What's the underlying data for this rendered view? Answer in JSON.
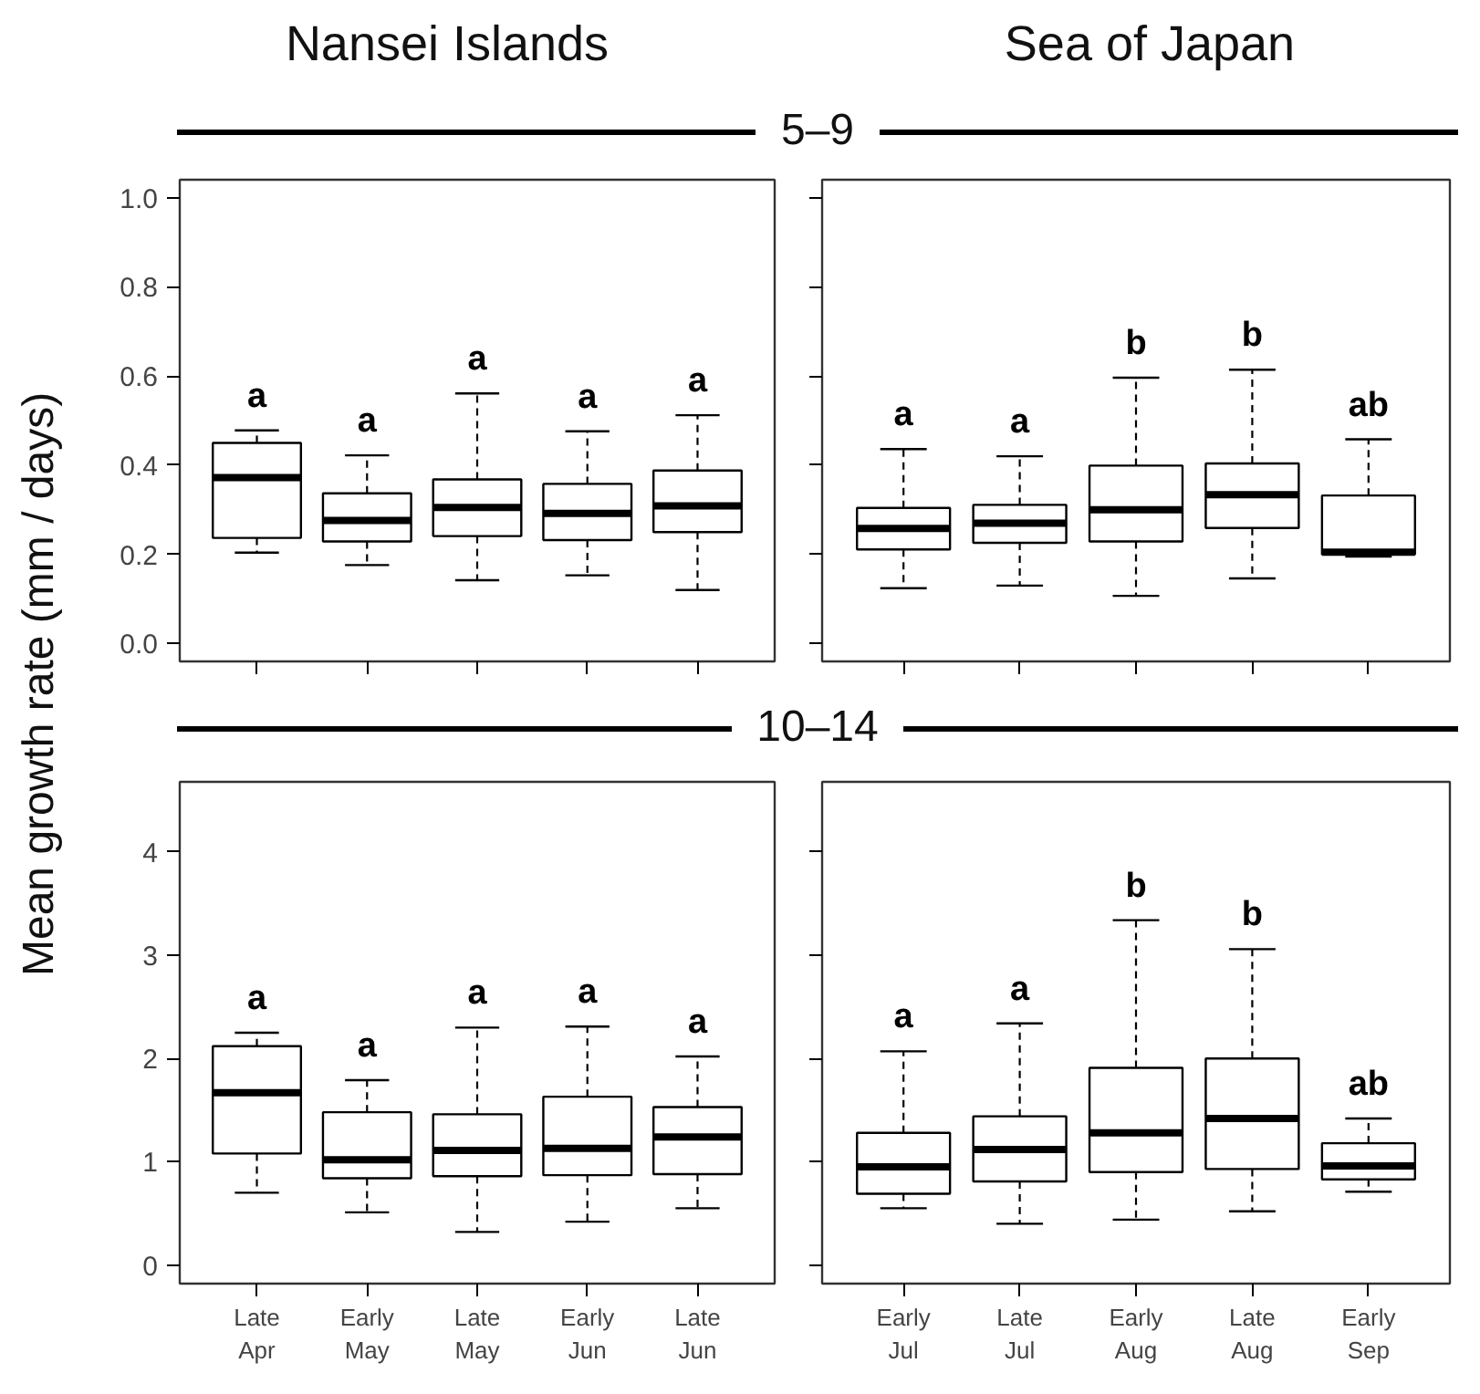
{
  "chart_data": [
    {
      "type": "box",
      "title": "Nansei Islands",
      "subtitle": "5–9",
      "ylabel": "Mean growth rate (mm / days)",
      "tick_labels": "y",
      "categories": [
        "Late Apr",
        "Early May",
        "Late May",
        "Early Jun",
        "Late Jun"
      ],
      "ylim": [
        -0.04,
        1.04
      ],
      "yticks": [
        {
          "value": 0,
          "label": "0.0"
        },
        0.2,
        0.4,
        0.6,
        0.8,
        {
          "value": 1,
          "label": "1.0"
        }
      ],
      "boxes": [
        {
          "low": 0.204,
          "q1": 0.237,
          "median": 0.372,
          "q3": 0.45,
          "high": 0.478
        },
        {
          "low": 0.176,
          "q1": 0.229,
          "median": 0.276,
          "q3": 0.337,
          "high": 0.422
        },
        {
          "low": 0.142,
          "q1": 0.241,
          "median": 0.305,
          "q3": 0.368,
          "high": 0.561
        },
        {
          "low": 0.153,
          "q1": 0.232,
          "median": 0.292,
          "q3": 0.358,
          "high": 0.476
        },
        {
          "low": 0.12,
          "q1": 0.25,
          "median": 0.309,
          "q3": 0.388,
          "high": 0.512
        }
      ],
      "annotations": [
        {
          "text": "a",
          "x": "Late Apr",
          "y": 0.478
        },
        {
          "text": "a",
          "x": "Early May",
          "y": 0.422
        },
        {
          "text": "a",
          "x": "Late May",
          "y": 0.561
        },
        {
          "text": "a",
          "x": "Early Jun",
          "y": 0.476
        },
        {
          "text": "a",
          "x": "Late Jun",
          "y": 0.512
        }
      ]
    },
    {
      "type": "box",
      "title": "Sea of Japan",
      "tick_labels": false,
      "categories": [
        "Early Jul",
        "Late Jul",
        "Early Aug",
        "Late Aug",
        "Early Sep"
      ],
      "ylim": [
        -0.04,
        1.04
      ],
      "yticks": [
        {
          "value": 0,
          "label": null
        },
        {
          "value": 0.2,
          "label": null
        },
        {
          "value": 0.4,
          "label": null
        },
        {
          "value": 0.6,
          "label": null
        },
        {
          "value": 0.8,
          "label": null
        },
        {
          "value": 1,
          "label": null
        }
      ],
      "boxes": [
        {
          "low": 0.124,
          "q1": 0.211,
          "median": 0.258,
          "q3": 0.304,
          "high": 0.436
        },
        {
          "low": 0.13,
          "q1": 0.226,
          "median": 0.27,
          "q3": 0.311,
          "high": 0.42
        },
        {
          "low": 0.107,
          "q1": 0.229,
          "median": 0.3,
          "q3": 0.399,
          "high": 0.596
        },
        {
          "low": 0.146,
          "q1": 0.259,
          "median": 0.334,
          "q3": 0.404,
          "high": 0.614
        },
        {
          "low": 0.195,
          "q1": 0.2,
          "median": 0.205,
          "q3": 0.332,
          "high": 0.458
        }
      ],
      "annotations": [
        {
          "text": "a",
          "x": "Early Jul",
          "y": 0.436
        },
        {
          "text": "a",
          "x": "Late Jul",
          "y": 0.42
        },
        {
          "text": "b",
          "x": "Early Aug",
          "y": 0.596
        },
        {
          "text": "b",
          "x": "Late Aug",
          "y": 0.614
        },
        {
          "text": "ab",
          "x": "Early Sep",
          "y": 0.458
        }
      ]
    },
    {
      "type": "box",
      "subtitle": "10–14",
      "categories": [
        "Late Apr",
        "Early May",
        "Late May",
        "Early Jun",
        "Late Jun"
      ],
      "ylim": [
        -0.18,
        4.68
      ],
      "yticks": [
        0,
        1,
        2,
        3,
        4
      ],
      "boxes": [
        {
          "low": 0.7,
          "q1": 1.08,
          "median": 1.67,
          "q3": 2.12,
          "high": 2.25
        },
        {
          "low": 0.51,
          "q1": 0.84,
          "median": 1.02,
          "q3": 1.48,
          "high": 1.79
        },
        {
          "low": 0.32,
          "q1": 0.86,
          "median": 1.11,
          "q3": 1.46,
          "high": 2.3
        },
        {
          "low": 0.42,
          "q1": 0.87,
          "median": 1.13,
          "q3": 1.63,
          "high": 2.31
        },
        {
          "low": 0.55,
          "q1": 0.88,
          "median": 1.24,
          "q3": 1.53,
          "high": 2.02
        }
      ],
      "annotations": [
        {
          "text": "a",
          "x": "Late Apr",
          "y": 2.25
        },
        {
          "text": "a",
          "x": "Early May",
          "y": 1.79
        },
        {
          "text": "a",
          "x": "Late May",
          "y": 2.3
        },
        {
          "text": "a",
          "x": "Early Jun",
          "y": 2.31
        },
        {
          "text": "a",
          "x": "Late Jun",
          "y": 2.02
        }
      ]
    },
    {
      "type": "box",
      "tick_labels": "x",
      "categories": [
        "Early Jul",
        "Late Jul",
        "Early Aug",
        "Late Aug",
        "Early Sep"
      ],
      "ylim": [
        -0.18,
        4.68
      ],
      "yticks": [
        {
          "value": 0,
          "label": null
        },
        {
          "value": 1,
          "label": null
        },
        {
          "value": 2,
          "label": null
        },
        {
          "value": 3,
          "label": null
        },
        {
          "value": 4,
          "label": null
        }
      ],
      "boxes": [
        {
          "low": 0.55,
          "q1": 0.69,
          "median": 0.95,
          "q3": 1.28,
          "high": 2.07
        },
        {
          "low": 0.4,
          "q1": 0.81,
          "median": 1.12,
          "q3": 1.44,
          "high": 2.34
        },
        {
          "low": 0.44,
          "q1": 0.9,
          "median": 1.28,
          "q3": 1.91,
          "high": 3.34
        },
        {
          "low": 0.52,
          "q1": 0.93,
          "median": 1.42,
          "q3": 2.0,
          "high": 3.06
        },
        {
          "low": 0.71,
          "q1": 0.83,
          "median": 0.96,
          "q3": 1.18,
          "high": 1.42
        }
      ],
      "annotations": [
        {
          "text": "a",
          "x": "Early Jul",
          "y": 2.07
        },
        {
          "text": "a",
          "x": "Late Jul",
          "y": 2.34
        },
        {
          "text": "b",
          "x": "Early Aug",
          "y": 3.34
        },
        {
          "text": "b",
          "x": "Late Aug",
          "y": 3.06
        },
        {
          "text": "ab",
          "x": "Early Sep",
          "y": 1.42
        }
      ]
    }
  ]
}
